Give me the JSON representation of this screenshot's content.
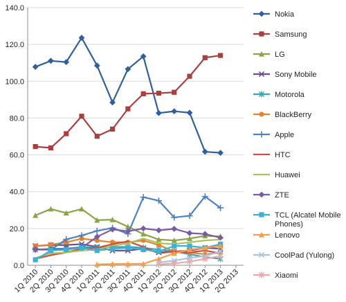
{
  "chart_data": {
    "type": "line",
    "title": "",
    "xlabel": "",
    "ylabel": "",
    "ylim": [
      0,
      140
    ],
    "y_ticks": [
      "0.0",
      "20.0",
      "40.0",
      "60.0",
      "80.0",
      "100.0",
      "120.0",
      "140.0"
    ],
    "categories": [
      "1Q 2010",
      "2Q 2010",
      "3Q 2010",
      "4Q 2010",
      "1Q 2011",
      "2Q 2011",
      "3Q 2011",
      "4Q 2011",
      "1Q 2012",
      "2Q 2012",
      "3Q 2012",
      "4Q 2012",
      "1Q 2013",
      "2Q 2013"
    ],
    "grid": true,
    "legend_position": "right",
    "series": [
      {
        "name": "Nokia",
        "color": "#2e5f9e",
        "marker": "diamond",
        "values": [
          107.8,
          111.1,
          110.4,
          123.6,
          108.5,
          88.5,
          106.6,
          113.5,
          82.7,
          83.7,
          82.9,
          61.7,
          61.1,
          null
        ]
      },
      {
        "name": "Samsung",
        "color": "#a93f3f",
        "marker": "square",
        "values": [
          64.5,
          63.8,
          71.5,
          81.0,
          70.1,
          74.0,
          85.0,
          93.2,
          93.5,
          94.0,
          102.7,
          112.8,
          114.0,
          null
        ]
      },
      {
        "name": "LG",
        "color": "#8aa446",
        "marker": "triangle",
        "values": [
          27.1,
          30.6,
          28.4,
          30.6,
          24.5,
          24.8,
          21.0,
          17.0,
          14.0,
          13.5,
          14.5,
          16.0,
          15.7,
          null
        ]
      },
      {
        "name": "Sony Mobile",
        "color": "#6b4c8c",
        "marker": "x",
        "values": [
          10.5,
          11.0,
          11.0,
          11.5,
          10.0,
          8.0,
          8.0,
          9.0,
          7.0,
          7.5,
          8.0,
          9.5,
          9.0,
          null
        ]
      },
      {
        "name": "Motorola",
        "color": "#3aa3b8",
        "marker": "star",
        "values": [
          8.5,
          9.0,
          9.0,
          10.0,
          9.5,
          10.0,
          10.0,
          9.5,
          8.5,
          7.5,
          6.0,
          4.5,
          3.5,
          null
        ]
      },
      {
        "name": "BlackBerry",
        "color": "#e2832e",
        "marker": "circle",
        "values": [
          10.5,
          11.2,
          12.5,
          14.5,
          13.5,
          12.5,
          12.5,
          13.5,
          11.0,
          7.5,
          6.9,
          6.0,
          6.8,
          null
        ]
      },
      {
        "name": "Apple",
        "color": "#4c82c2",
        "marker": "plus",
        "values": [
          8.8,
          8.4,
          14.1,
          16.2,
          18.7,
          20.3,
          17.1,
          37.0,
          35.1,
          26.0,
          26.9,
          37.4,
          31.2,
          null
        ]
      },
      {
        "name": "HTC",
        "color": "#d44b3f",
        "marker": "none",
        "values": [
          3.5,
          5.5,
          7.0,
          9.0,
          9.5,
          11.5,
          13.0,
          10.0,
          6.5,
          7.5,
          7.0,
          8.0,
          6.5,
          null
        ]
      },
      {
        "name": "Huawei",
        "color": "#a9c25a",
        "marker": "none",
        "values": [
          4.0,
          6.5,
          7.0,
          8.0,
          8.5,
          10.5,
          12.0,
          14.5,
          12.0,
          11.5,
          12.5,
          13.5,
          14.0,
          null
        ]
      },
      {
        "name": "ZTE",
        "color": "#7a5aa6",
        "marker": "diamond",
        "values": [
          8.5,
          8.5,
          9.0,
          9.5,
          15.5,
          19.5,
          18.5,
          20.0,
          19.0,
          19.8,
          17.5,
          17.0,
          15.0,
          null
        ]
      },
      {
        "name": "TCL (Alcatel Mobile Phones)",
        "color": "#3cb1d6",
        "marker": "square",
        "values": [
          3.0,
          8.0,
          8.5,
          9.5,
          8.0,
          9.0,
          9.5,
          8.5,
          7.5,
          10.5,
          10.5,
          9.5,
          11.5,
          null
        ]
      },
      {
        "name": "Lenovo",
        "color": "#f3a04e",
        "marker": "triangle",
        "values": [
          null,
          null,
          null,
          null,
          0.5,
          0.7,
          0.7,
          0.8,
          3.5,
          6.5,
          8.5,
          9.5,
          10.5,
          null
        ]
      },
      {
        "name": "CoolPad (Yulong)",
        "color": "#a9c4e0",
        "marker": "x",
        "values": [
          null,
          null,
          null,
          null,
          null,
          null,
          null,
          null,
          1.5,
          2.5,
          4.0,
          5.0,
          7.5,
          null
        ]
      },
      {
        "name": "Xiaomi",
        "color": "#e8a9a9",
        "marker": "star",
        "values": [
          null,
          null,
          null,
          null,
          null,
          null,
          null,
          null,
          0.5,
          1.0,
          2.0,
          3.5,
          5.0,
          null
        ]
      }
    ]
  }
}
